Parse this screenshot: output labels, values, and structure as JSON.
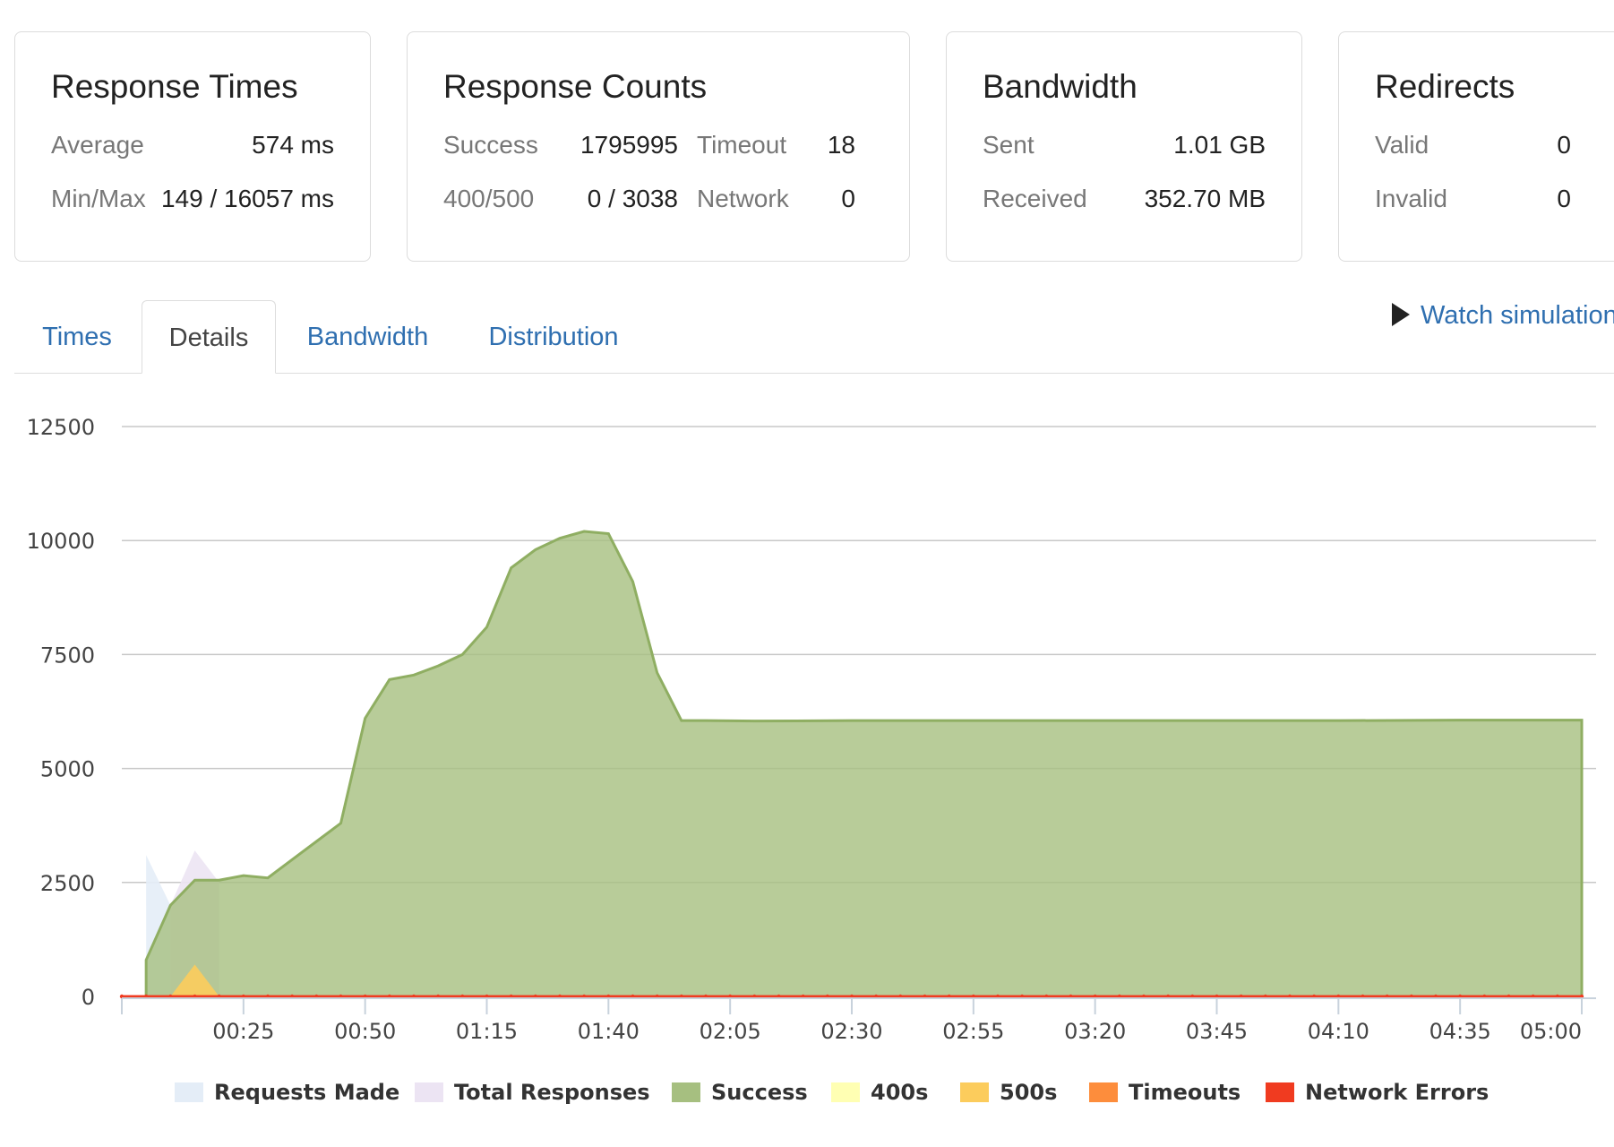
{
  "summary": {
    "response_times": {
      "title": "Response Times",
      "average_label": "Average",
      "average_value": "574 ms",
      "minmax_label": "Min/Max",
      "minmax_value": "149 / 16057 ms"
    },
    "response_counts": {
      "title": "Response Counts",
      "success_label": "Success",
      "success_value": "1795995",
      "timeout_label": "Timeout",
      "timeout_value": "18",
      "errors_label": "400/500",
      "errors_value": "0 / 3038",
      "network_label": "Network",
      "network_value": "0"
    },
    "bandwidth": {
      "title": "Bandwidth",
      "sent_label": "Sent",
      "sent_value": "1.01 GB",
      "received_label": "Received",
      "received_value": "352.70 MB"
    },
    "redirects": {
      "title": "Redirects",
      "valid_label": "Valid",
      "valid_value": "0",
      "invalid_label": "Invalid",
      "invalid_value": "0"
    }
  },
  "tabs": [
    {
      "label": "Times",
      "active": false
    },
    {
      "label": "Details",
      "active": true
    },
    {
      "label": "Bandwidth",
      "active": false
    },
    {
      "label": "Distribution",
      "active": false
    }
  ],
  "watch_simulation_label": "Watch simulation",
  "chart_data": {
    "type": "area",
    "title": "",
    "xlabel": "",
    "ylabel": "",
    "ylim": [
      0,
      12500
    ],
    "xlim": [
      0,
      300
    ],
    "y_ticks": [
      0,
      2500,
      5000,
      7500,
      10000,
      12500
    ],
    "x_ticks": [
      25,
      50,
      75,
      100,
      125,
      150,
      175,
      200,
      225,
      250,
      275,
      300
    ],
    "x_tick_labels": [
      "00:25",
      "00:50",
      "01:15",
      "01:40",
      "02:05",
      "02:30",
      "02:55",
      "03:20",
      "03:45",
      "04:10",
      "04:35",
      "05:00"
    ],
    "grid": true,
    "legend_position": "bottom",
    "series": [
      {
        "name": "Requests Made",
        "color": "#e4edf7",
        "x": [
          5,
          5,
          10,
          10
        ],
        "values": [
          0,
          3100,
          2000,
          0
        ]
      },
      {
        "name": "Total Responses",
        "color": "#ece4f3",
        "x": [
          10,
          15,
          20,
          20
        ],
        "values": [
          2000,
          3200,
          2500,
          0
        ]
      },
      {
        "name": "Success",
        "color": "#a6bf80",
        "x": [
          5,
          5,
          10,
          15,
          20,
          25,
          30,
          35,
          40,
          45,
          50,
          55,
          60,
          65,
          70,
          75,
          80,
          85,
          90,
          95,
          100,
          105,
          110,
          115,
          120,
          130,
          150,
          175,
          200,
          225,
          250,
          275,
          300,
          300
        ],
        "values": [
          0,
          800,
          2000,
          2550,
          2550,
          2650,
          2600,
          3000,
          3400,
          3800,
          6100,
          6950,
          7050,
          7250,
          7500,
          8100,
          9400,
          9800,
          10050,
          10200,
          10150,
          9100,
          7100,
          6050,
          6050,
          6040,
          6050,
          6050,
          6050,
          6050,
          6050,
          6060,
          6060,
          0
        ]
      },
      {
        "name": "400s",
        "color": "#ffffb3",
        "x": [
          0,
          300
        ],
        "values": [
          0,
          0
        ]
      },
      {
        "name": "500s",
        "color": "#fccc5c",
        "x": [
          10,
          15,
          20
        ],
        "values": [
          0,
          700,
          0
        ]
      },
      {
        "name": "Timeouts",
        "color": "#fd8d3c",
        "x": [
          0,
          300
        ],
        "values": [
          0,
          0
        ]
      },
      {
        "name": "Network Errors",
        "color": "#f03b20",
        "x": [
          0,
          300
        ],
        "values": [
          0,
          0
        ]
      }
    ]
  }
}
